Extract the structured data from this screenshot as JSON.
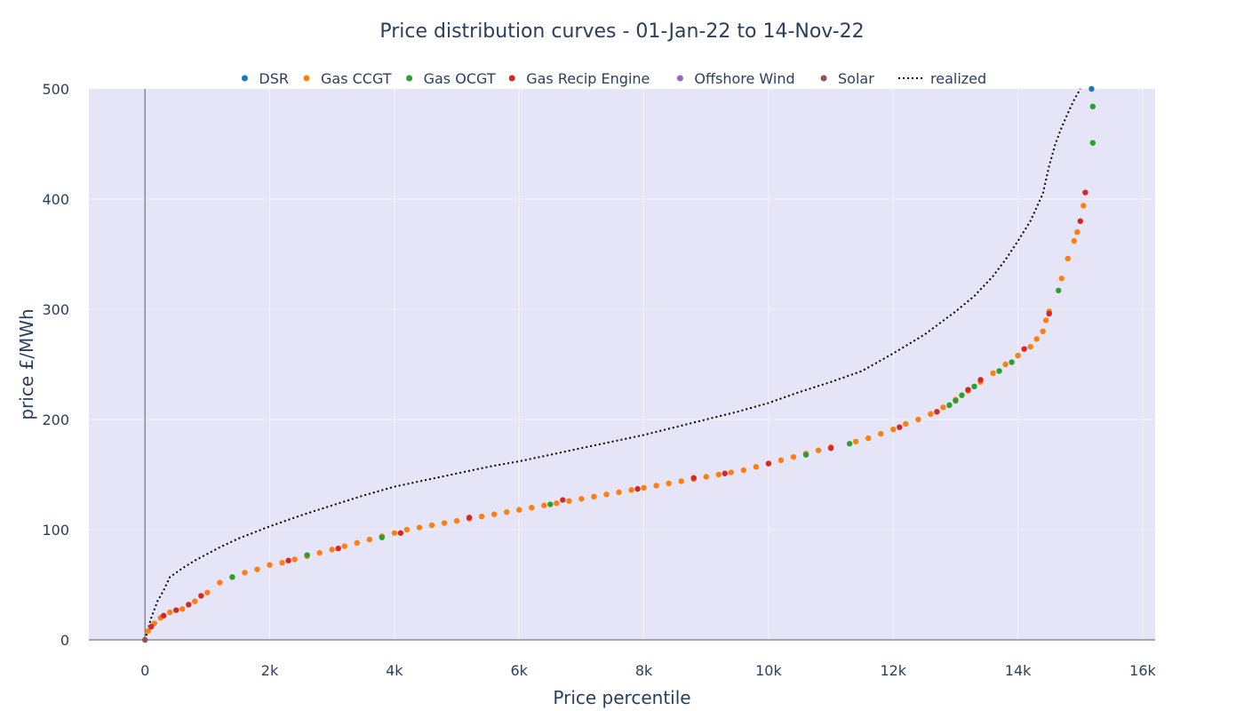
{
  "chart_data": {
    "type": "scatter",
    "title": "Price distribution curves - 01-Jan-22 to 14-Nov-22",
    "xlabel": "Price percentile",
    "ylabel": "price £/MWh",
    "xlim": [
      -900,
      16200
    ],
    "ylim": [
      0,
      500
    ],
    "x_ticks": [
      0,
      2000,
      4000,
      6000,
      8000,
      10000,
      12000,
      14000,
      16000
    ],
    "x_tick_labels": [
      "0",
      "2k",
      "4k",
      "6k",
      "8k",
      "10k",
      "12k",
      "14k",
      "16k"
    ],
    "y_ticks": [
      0,
      100,
      200,
      300,
      400,
      500
    ],
    "y_tick_labels": [
      "0",
      "100",
      "200",
      "300",
      "400",
      "500"
    ],
    "grid": true,
    "legend_position": "top",
    "colors": {
      "background": "#e5e5f7",
      "grid": "#f4f4fb",
      "DSR": "#1f77b4",
      "Gas CCGT": "#ff7f0e",
      "Gas OCGT": "#2ca02c",
      "Gas Recip Engine": "#d62728",
      "Offshore Wind": "#9467bd",
      "Solar": "#8c564b",
      "realized": "#000000"
    },
    "series": [
      {
        "name": "DSR",
        "mode": "markers",
        "color": "#1f77b4",
        "points": [
          [
            15180,
            500
          ]
        ]
      },
      {
        "name": "Gas CCGT",
        "mode": "markers",
        "color": "#ff7f0e",
        "points": [
          [
            50,
            8
          ],
          [
            150,
            15
          ],
          [
            250,
            20
          ],
          [
            400,
            25
          ],
          [
            600,
            28
          ],
          [
            800,
            35
          ],
          [
            1000,
            43
          ],
          [
            1200,
            52
          ],
          [
            1400,
            57
          ],
          [
            1600,
            61
          ],
          [
            1800,
            64
          ],
          [
            2000,
            68
          ],
          [
            2200,
            70
          ],
          [
            2400,
            73
          ],
          [
            2600,
            76
          ],
          [
            2800,
            79
          ],
          [
            3000,
            82
          ],
          [
            3200,
            85
          ],
          [
            3400,
            88
          ],
          [
            3600,
            91
          ],
          [
            3800,
            94
          ],
          [
            4000,
            97
          ],
          [
            4200,
            100
          ],
          [
            4400,
            102
          ],
          [
            4600,
            104
          ],
          [
            4800,
            106
          ],
          [
            5000,
            108
          ],
          [
            5200,
            110
          ],
          [
            5400,
            112
          ],
          [
            5600,
            114
          ],
          [
            5800,
            116
          ],
          [
            6000,
            118
          ],
          [
            6200,
            120
          ],
          [
            6400,
            122
          ],
          [
            6600,
            124
          ],
          [
            6800,
            126
          ],
          [
            7000,
            128
          ],
          [
            7200,
            130
          ],
          [
            7400,
            132
          ],
          [
            7600,
            134
          ],
          [
            7800,
            136
          ],
          [
            8000,
            138
          ],
          [
            8200,
            140
          ],
          [
            8400,
            142
          ],
          [
            8600,
            144
          ],
          [
            8800,
            146
          ],
          [
            9000,
            148
          ],
          [
            9200,
            150
          ],
          [
            9400,
            152
          ],
          [
            9600,
            154
          ],
          [
            9800,
            157
          ],
          [
            10000,
            160
          ],
          [
            10200,
            163
          ],
          [
            10400,
            166
          ],
          [
            10600,
            169
          ],
          [
            10800,
            172
          ],
          [
            11000,
            175
          ],
          [
            11400,
            180
          ],
          [
            11600,
            183
          ],
          [
            11800,
            187
          ],
          [
            12000,
            191
          ],
          [
            12200,
            196
          ],
          [
            12400,
            200
          ],
          [
            12600,
            205
          ],
          [
            12800,
            211
          ],
          [
            13000,
            218
          ],
          [
            13200,
            226
          ],
          [
            13400,
            234
          ],
          [
            13600,
            242
          ],
          [
            13800,
            250
          ],
          [
            14000,
            258
          ],
          [
            14200,
            266
          ],
          [
            14300,
            273
          ],
          [
            14400,
            280
          ],
          [
            14450,
            290
          ],
          [
            14500,
            298
          ],
          [
            14700,
            328
          ],
          [
            14800,
            346
          ],
          [
            14900,
            362
          ],
          [
            14950,
            370
          ],
          [
            15050,
            394
          ]
        ]
      },
      {
        "name": "Gas OCGT",
        "mode": "markers",
        "color": "#2ca02c",
        "points": [
          [
            1400,
            57
          ],
          [
            2600,
            77
          ],
          [
            3800,
            93
          ],
          [
            6500,
            123
          ],
          [
            10600,
            168
          ],
          [
            11300,
            178
          ],
          [
            12900,
            213
          ],
          [
            13000,
            217
          ],
          [
            13100,
            222
          ],
          [
            13300,
            230
          ],
          [
            13700,
            244
          ],
          [
            13900,
            252
          ],
          [
            14650,
            317
          ],
          [
            15200,
            451
          ],
          [
            15200,
            484
          ]
        ]
      },
      {
        "name": "Gas Recip Engine",
        "mode": "markers",
        "color": "#d62728",
        "points": [
          [
            100,
            12
          ],
          [
            300,
            22
          ],
          [
            500,
            27
          ],
          [
            700,
            32
          ],
          [
            900,
            40
          ],
          [
            2300,
            72
          ],
          [
            3100,
            83
          ],
          [
            4100,
            97
          ],
          [
            5200,
            111
          ],
          [
            6700,
            127
          ],
          [
            7900,
            137
          ],
          [
            8800,
            147
          ],
          [
            9300,
            151
          ],
          [
            10000,
            160
          ],
          [
            11000,
            174
          ],
          [
            12100,
            193
          ],
          [
            12700,
            207
          ],
          [
            13200,
            227
          ],
          [
            13400,
            236
          ],
          [
            14100,
            264
          ],
          [
            14500,
            296
          ],
          [
            15000,
            380
          ],
          [
            15080,
            406
          ]
        ]
      },
      {
        "name": "Offshore Wind",
        "mode": "markers",
        "color": "#9467bd",
        "points": []
      },
      {
        "name": "Solar",
        "mode": "markers",
        "color": "#8c564b",
        "points": [
          [
            0,
            0
          ]
        ]
      },
      {
        "name": "realized",
        "mode": "lines",
        "dash": "dot",
        "color": "#000000",
        "points": [
          [
            0,
            0
          ],
          [
            50,
            10
          ],
          [
            100,
            20
          ],
          [
            200,
            35
          ],
          [
            300,
            45
          ],
          [
            400,
            57
          ],
          [
            600,
            65
          ],
          [
            800,
            72
          ],
          [
            1000,
            78
          ],
          [
            1200,
            84
          ],
          [
            1500,
            92
          ],
          [
            2000,
            103
          ],
          [
            2500,
            113
          ],
          [
            3000,
            122
          ],
          [
            3500,
            131
          ],
          [
            4000,
            139
          ],
          [
            4500,
            145
          ],
          [
            5000,
            151
          ],
          [
            5500,
            157
          ],
          [
            6000,
            162
          ],
          [
            6500,
            168
          ],
          [
            7000,
            174
          ],
          [
            7500,
            180
          ],
          [
            8000,
            186
          ],
          [
            8500,
            193
          ],
          [
            9000,
            200
          ],
          [
            9500,
            207
          ],
          [
            10000,
            215
          ],
          [
            10500,
            225
          ],
          [
            11000,
            234
          ],
          [
            11500,
            244
          ],
          [
            12000,
            260
          ],
          [
            12500,
            277
          ],
          [
            13000,
            298
          ],
          [
            13300,
            312
          ],
          [
            13600,
            330
          ],
          [
            13800,
            345
          ],
          [
            14000,
            362
          ],
          [
            14200,
            380
          ],
          [
            14400,
            405
          ],
          [
            14500,
            430
          ],
          [
            14600,
            450
          ],
          [
            14700,
            465
          ],
          [
            14800,
            478
          ],
          [
            14900,
            490
          ],
          [
            15000,
            500
          ]
        ]
      }
    ]
  }
}
